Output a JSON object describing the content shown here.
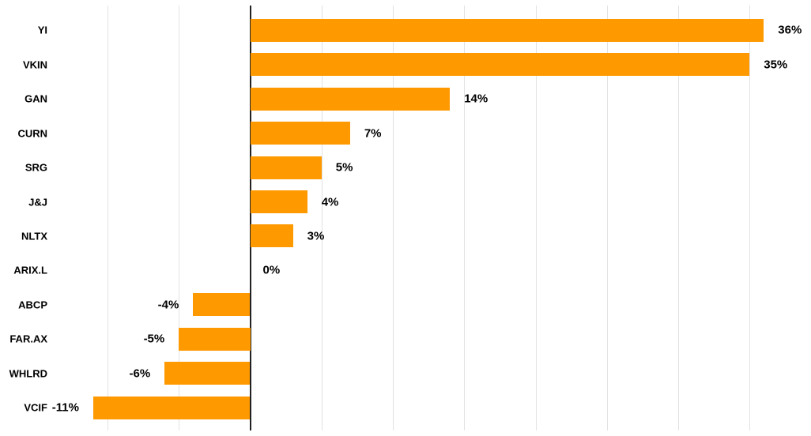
{
  "chart_data": {
    "type": "bar",
    "orientation": "horizontal",
    "title": "",
    "subtitle": "",
    "xlabel": "",
    "ylabel": "",
    "legend": "none",
    "grid": true,
    "unit": "%",
    "categories": [
      "YI",
      "VKIN",
      "GAN",
      "CURN",
      "SRG",
      "J&J",
      "NLTX",
      "ARIX.L",
      "ABCP",
      "FAR.AX",
      "WHLRD",
      "VCIF"
    ],
    "values": [
      36,
      35,
      14,
      7,
      5,
      4,
      3,
      0,
      -4,
      -5,
      -6,
      -11
    ],
    "value_labels": [
      "36%",
      "35%",
      "14%",
      "7%",
      "5%",
      "4%",
      "3%",
      "0%",
      "-4%",
      "-5%",
      "-6%",
      "-11%"
    ],
    "axis_tick_labels_visible": false,
    "gridline_values_pct": [
      -10,
      -5,
      5,
      10,
      15,
      20,
      25,
      30,
      35
    ],
    "zero_axis_value": 0,
    "xlim": [
      -17.5,
      39.2
    ]
  },
  "colors": {
    "bar": "#FF9900",
    "zero_axis": "#212121",
    "gridline": "#E2E2E2",
    "label": "#000000",
    "background": "#FFFFFF"
  }
}
